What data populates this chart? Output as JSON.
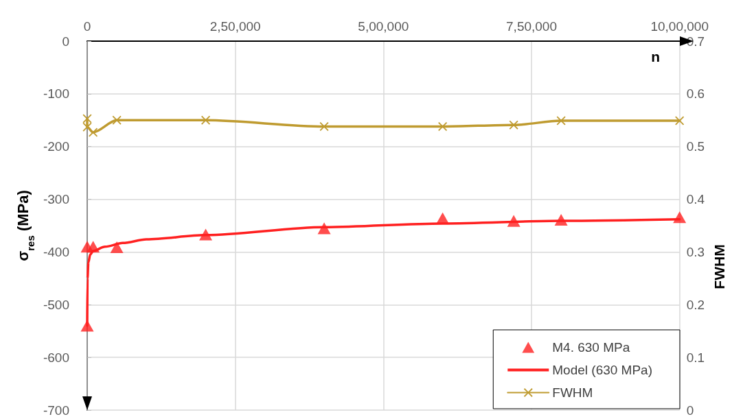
{
  "chart_data": {
    "type": "scatter",
    "xlabel": "n",
    "ylabel": "σ$_{res}$ (MPa)",
    "y2label": "FWHM",
    "xlim": [
      0,
      1000000
    ],
    "xticks": [
      0,
      {
        "value": 250000,
        "label": "2,50,000"
      },
      {
        "value": 500000,
        "label": "5,00,000"
      },
      {
        "value": 750000,
        "label": "7,50,000"
      },
      {
        "value": 1000000,
        "label": "10,00,000"
      }
    ],
    "ylim": [
      -700,
      0
    ],
    "yticks": [
      -700,
      -600,
      -500,
      -400,
      -300,
      -200,
      -100,
      0
    ],
    "y2lim": [
      0,
      0.7
    ],
    "y2ticks": [
      0,
      0.1,
      0.2,
      0.3,
      0.4,
      0.5,
      0.6,
      0.7
    ],
    "grid": true,
    "legend": "bottom right",
    "series": [
      {
        "name": "M4. 630 MPa",
        "marker": "triangle",
        "color": "#ff2020",
        "x": [
          0,
          0,
          10000,
          50000,
          200000,
          400000,
          600000,
          720000,
          800000,
          1000000
        ],
        "values": [
          -540,
          -390,
          -390,
          -391,
          -367,
          -355,
          -336,
          -341,
          -339,
          -334
        ]
      },
      {
        "name": "Model (630 MPa)",
        "type": "line",
        "marker": "none",
        "color": "#ff2020",
        "x": [
          0,
          500,
          2000,
          5000,
          10000,
          30000,
          60000,
          100000,
          200000,
          400000,
          600000,
          800000,
          1000000
        ],
        "values": [
          -540,
          -450,
          -420,
          -405,
          -398,
          -390,
          -383,
          -376,
          -368,
          -353,
          -346,
          -341,
          -338
        ]
      },
      {
        "name": "FWHM",
        "type": "line",
        "marker": "cross",
        "axis": "y2",
        "color": "#bf9b30",
        "x": [
          0,
          0,
          10000,
          50000,
          200000,
          400000,
          600000,
          720000,
          800000,
          1000000
        ],
        "values": [
          0.553,
          0.537,
          0.527,
          0.55,
          0.55,
          0.538,
          0.538,
          0.541,
          0.549,
          0.549
        ]
      }
    ]
  }
}
